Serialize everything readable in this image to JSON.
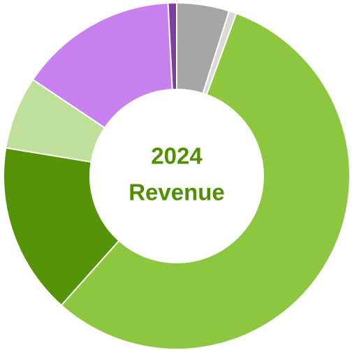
{
  "chart_data": {
    "type": "donut",
    "center_text": [
      "2024",
      "Revenue"
    ],
    "values": [
      4.9,
      0.7,
      56,
      16,
      6.8,
      14.8,
      0.8
    ],
    "colors": [
      "#a6a6a6",
      "#d9d9d9",
      "#8dc63f",
      "#559406",
      "#bfe09a",
      "#c880ee",
      "#7b3fa0"
    ]
  }
}
